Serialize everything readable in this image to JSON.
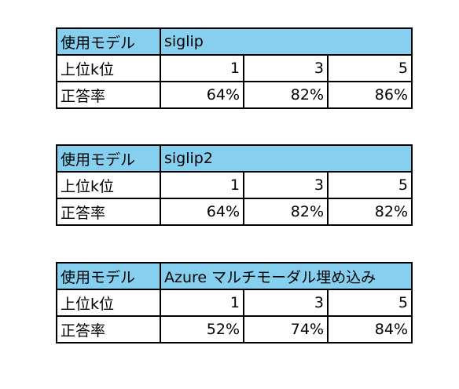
{
  "tables": [
    {
      "model_label": "使用モデル",
      "model_name": "siglip",
      "k_label": "上位k位",
      "k_values": [
        "1",
        "3",
        "5"
      ],
      "acc_label": "正答率",
      "acc_values": [
        "64%",
        "82%",
        "86%"
      ]
    },
    {
      "model_label": "使用モデル",
      "model_name": "siglip2",
      "k_label": "上位k位",
      "k_values": [
        "1",
        "3",
        "5"
      ],
      "acc_label": "正答率",
      "acc_values": [
        "64%",
        "82%",
        "82%"
      ]
    },
    {
      "model_label": "使用モデル",
      "model_name": "Azure マルチモーダル埋め込み",
      "k_label": "上位k位",
      "k_values": [
        "1",
        "3",
        "5"
      ],
      "acc_label": "正答率",
      "acc_values": [
        "52%",
        "74%",
        "84%"
      ]
    }
  ]
}
